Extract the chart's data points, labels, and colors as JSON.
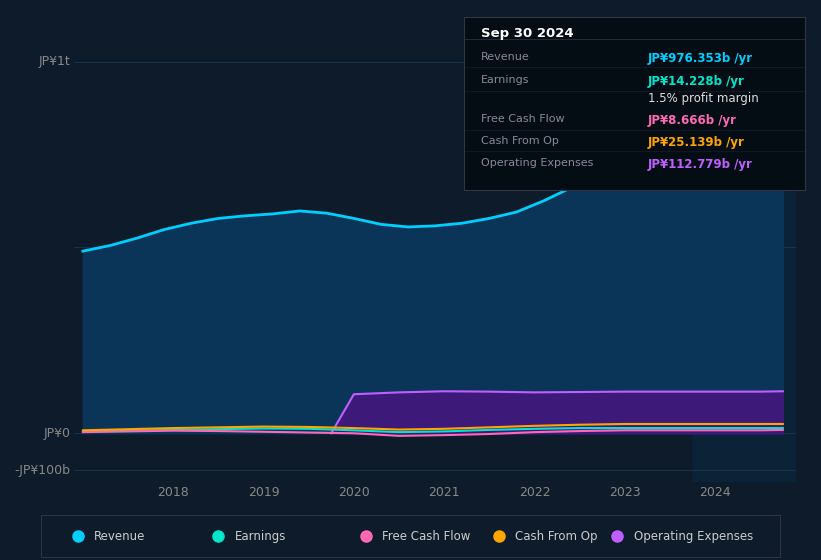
{
  "background_color": "#0d1b2a",
  "info_box_bg": "#050d14",
  "grid_color": "#1a3a55",
  "revenue": {
    "x": [
      2017.0,
      2017.3,
      2017.6,
      2017.9,
      2018.2,
      2018.5,
      2018.8,
      2019.1,
      2019.4,
      2019.7,
      2020.0,
      2020.3,
      2020.6,
      2020.9,
      2021.2,
      2021.5,
      2021.8,
      2022.1,
      2022.4,
      2022.7,
      2023.0,
      2023.3,
      2023.6,
      2023.9,
      2024.2,
      2024.5,
      2024.75
    ],
    "y": [
      490,
      505,
      525,
      548,
      565,
      578,
      585,
      590,
      598,
      592,
      578,
      562,
      555,
      558,
      565,
      578,
      595,
      625,
      660,
      700,
      740,
      785,
      830,
      875,
      920,
      955,
      976
    ],
    "line_color": "#00cfff",
    "fill_color": "#0a3558"
  },
  "earnings": {
    "x": [
      2017.0,
      2017.5,
      2018.0,
      2018.5,
      2019.0,
      2019.5,
      2020.0,
      2020.5,
      2021.0,
      2021.5,
      2022.0,
      2022.5,
      2023.0,
      2023.5,
      2024.0,
      2024.5,
      2024.75
    ],
    "y": [
      5,
      7,
      9,
      11,
      13,
      12,
      8,
      3,
      5,
      9,
      12,
      14,
      14,
      14,
      14,
      14,
      14
    ],
    "line_color": "#00e5cc"
  },
  "fcf": {
    "x": [
      2017.0,
      2017.5,
      2018.0,
      2018.5,
      2019.0,
      2019.5,
      2020.0,
      2020.5,
      2021.0,
      2021.5,
      2022.0,
      2022.5,
      2023.0,
      2023.5,
      2024.0,
      2024.5,
      2024.75
    ],
    "y": [
      3,
      5,
      7,
      6,
      4,
      2,
      0,
      -7,
      -5,
      -2,
      3,
      6,
      8,
      8,
      8,
      8,
      9
    ],
    "line_color": "#ff69b4"
  },
  "cashop": {
    "x": [
      2017.0,
      2017.5,
      2018.0,
      2018.5,
      2019.0,
      2019.5,
      2020.0,
      2020.5,
      2021.0,
      2021.5,
      2022.0,
      2022.5,
      2023.0,
      2023.5,
      2024.0,
      2024.5,
      2024.75
    ],
    "y": [
      8,
      11,
      14,
      16,
      18,
      17,
      14,
      10,
      12,
      16,
      20,
      23,
      25,
      25,
      25,
      25,
      25
    ],
    "line_color": "#ffa500"
  },
  "opex": {
    "x": [
      2019.75,
      2020.0,
      2020.5,
      2021.0,
      2021.5,
      2022.0,
      2022.5,
      2023.0,
      2023.5,
      2024.0,
      2024.5,
      2024.75
    ],
    "y": [
      0,
      105,
      110,
      113,
      112,
      110,
      111,
      112,
      112,
      112,
      112,
      113
    ],
    "line_color": "#bf5fff",
    "fill_color": "#3d1a7a"
  },
  "ylim": [
    -130,
    1060
  ],
  "xlim": [
    2016.9,
    2024.9
  ],
  "xticks": [
    2018,
    2019,
    2020,
    2021,
    2022,
    2023,
    2024
  ],
  "ytick_lines": [
    -100,
    0,
    500,
    1000
  ],
  "shade_x": 2023.75,
  "info": {
    "date": "Sep 30 2024",
    "rows": [
      {
        "label": "Revenue",
        "value": "JP¥976.353b /yr",
        "color": "#00cfff"
      },
      {
        "label": "Earnings",
        "value": "JP¥14.228b /yr",
        "color": "#00e5cc"
      },
      {
        "label": "",
        "value": "1.5% profit margin",
        "color": "#dddddd"
      },
      {
        "label": "Free Cash Flow",
        "value": "JP¥8.666b /yr",
        "color": "#ff69b4"
      },
      {
        "label": "Cash From Op",
        "value": "JP¥25.139b /yr",
        "color": "#ffa500"
      },
      {
        "label": "Operating Expenses",
        "value": "JP¥112.779b /yr",
        "color": "#bf5fff"
      }
    ]
  },
  "legend": [
    {
      "label": "Revenue",
      "color": "#00cfff"
    },
    {
      "label": "Earnings",
      "color": "#00e5cc"
    },
    {
      "label": "Free Cash Flow",
      "color": "#ff69b4"
    },
    {
      "label": "Cash From Op",
      "color": "#ffa500"
    },
    {
      "label": "Operating Expenses",
      "color": "#bf5fff"
    }
  ]
}
